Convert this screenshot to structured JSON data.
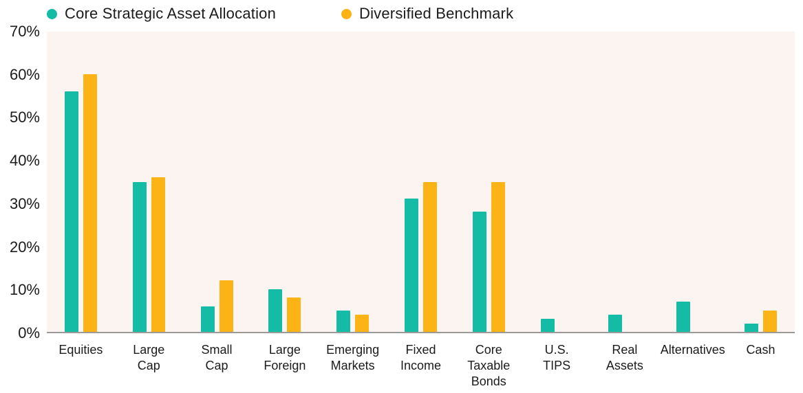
{
  "colors": {
    "series1_teal": "#14BCA6",
    "series2_yellow": "#FBB316",
    "plot_background": "#FBF4F1",
    "axis_line": "#9C9A98",
    "text": "#1B1B1B",
    "page_background": "#FFFFFF"
  },
  "legend": {
    "items": [
      {
        "label": "Core Strategic Asset Allocation",
        "swatch": "teal-dot"
      },
      {
        "label": "Diversified Benchmark",
        "swatch": "yellow-dot"
      }
    ]
  },
  "chart_data": {
    "type": "bar",
    "title": "",
    "xlabel": "",
    "ylabel": "",
    "categories": [
      "Equities",
      "Large\nCap",
      "Small\nCap",
      "Large\nForeign",
      "Emerging\nMarkets",
      "Fixed\nIncome",
      "Core\nTaxable\nBonds",
      "U.S.\nTIPS",
      "Real\nAssets",
      "Alternatives",
      "Cash"
    ],
    "series": [
      {
        "name": "Core Strategic Asset Allocation",
        "color": "#14BCA6",
        "values": [
          56,
          35,
          6,
          10,
          5,
          31,
          28,
          3,
          4,
          7,
          2
        ]
      },
      {
        "name": "Diversified Benchmark",
        "color": "#FBB316",
        "values": [
          60,
          36,
          12,
          8,
          4,
          35,
          35,
          0,
          0,
          0,
          5
        ]
      }
    ],
    "ylim": [
      0,
      70
    ],
    "yticks": [
      "70%",
      "60%",
      "50%",
      "40%",
      "30%",
      "20%",
      "10%",
      "0%"
    ],
    "ytick_values": [
      70,
      60,
      50,
      40,
      30,
      20,
      10,
      0
    ],
    "grid": false,
    "legend_position": "top-left"
  }
}
